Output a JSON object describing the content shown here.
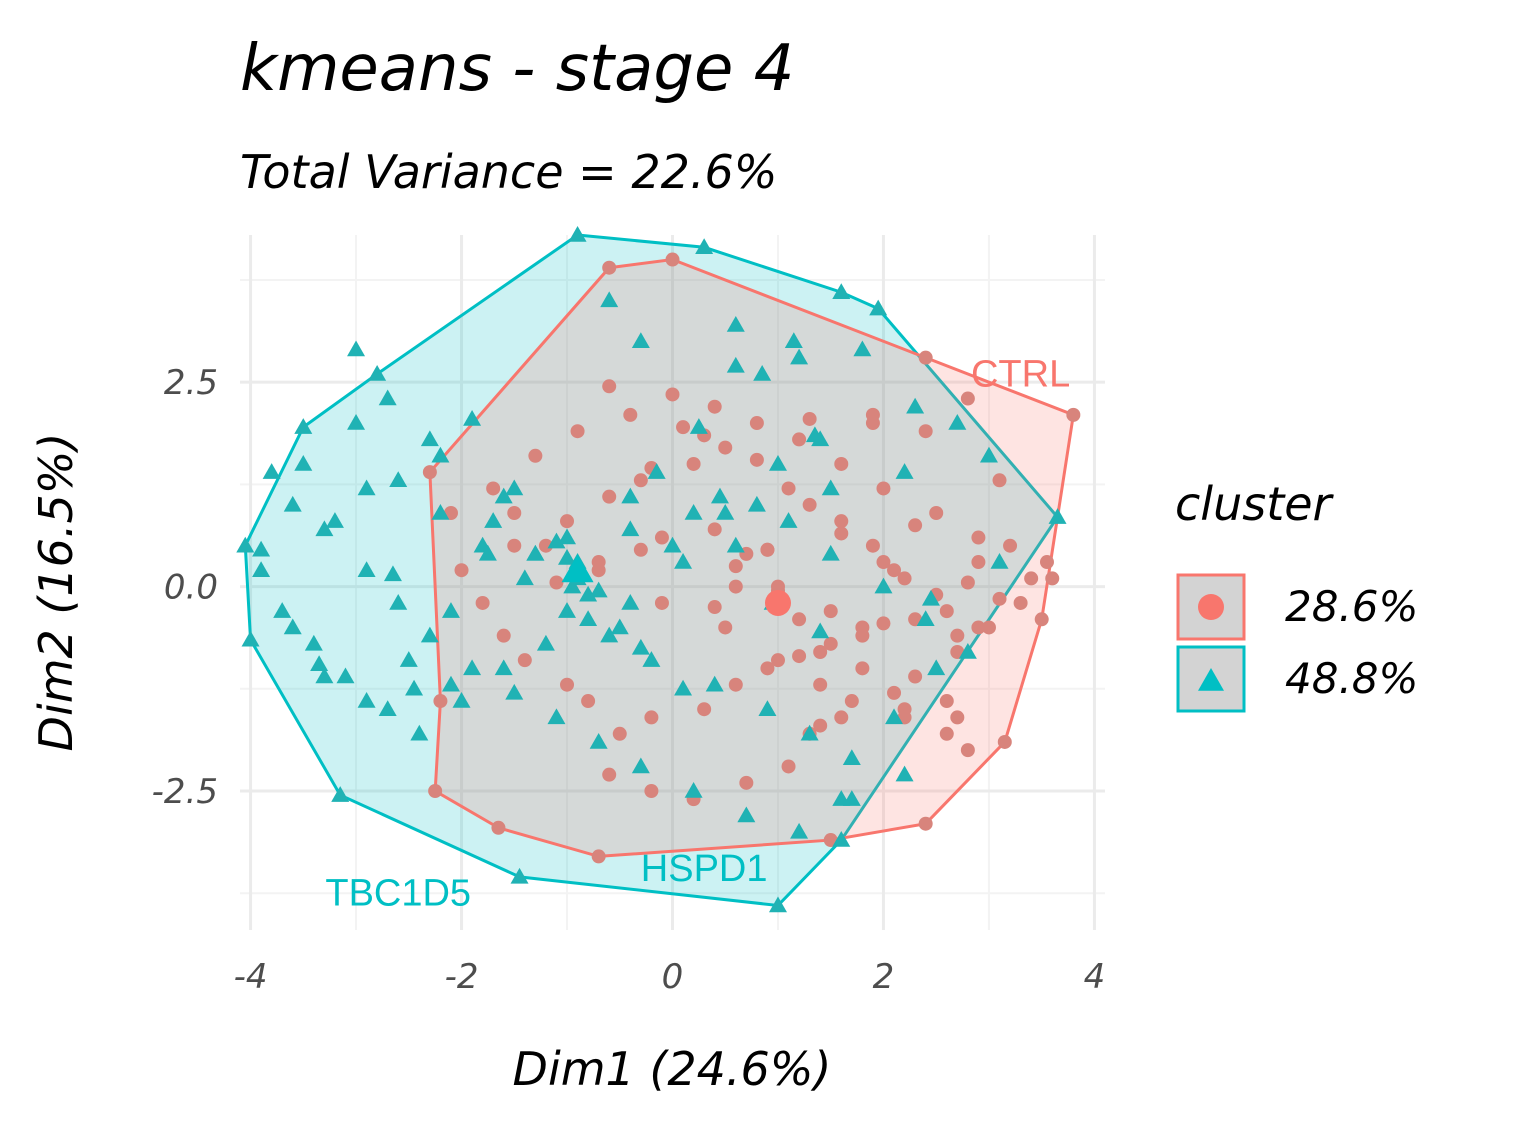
{
  "chart_data": {
    "type": "scatter",
    "title": "kmeans - stage 4",
    "subtitle": "Total Variance = 22.6%",
    "xlabel": "Dim1 (24.6%)",
    "ylabel": "Dim2 (16.5%)",
    "xlim": [
      -4.1,
      4.1
    ],
    "ylim": [
      -4.2,
      4.3
    ],
    "xticks": [
      -4,
      -2,
      0,
      2,
      4
    ],
    "xtick_labels": [
      "-4",
      "-2",
      "0",
      "2",
      "4"
    ],
    "yticks": [
      -2.5,
      0.0,
      2.5
    ],
    "ytick_labels": [
      "-2.5",
      "0.0",
      "2.5"
    ],
    "grid": true,
    "legend": {
      "title": "cluster",
      "position": "right",
      "entries": [
        {
          "label": "28.6%",
          "color": "#F8766D",
          "marker": "circle"
        },
        {
          "label": "48.8%",
          "color": "#00BFC4",
          "marker": "triangle"
        }
      ]
    },
    "annotations": [
      {
        "text": "CTRL",
        "x": 3.3,
        "y": 2.45,
        "color": "#F8766D"
      },
      {
        "text": "TBC1D5",
        "x": -2.6,
        "y": -3.9,
        "color": "#00BFC4"
      },
      {
        "text": "HSPD1",
        "x": 0.3,
        "y": -3.6,
        "color": "#00BFC4"
      }
    ],
    "series": [
      {
        "name": "28.6%",
        "color": "#F8766D",
        "marker": "circle",
        "centroid": [
          1.0,
          -0.2
        ],
        "hull": [
          [
            -0.6,
            3.9
          ],
          [
            0.0,
            4.0
          ],
          [
            2.4,
            2.8
          ],
          [
            3.8,
            2.1
          ],
          [
            3.5,
            -0.4
          ],
          [
            3.15,
            -1.9
          ],
          [
            2.4,
            -2.9
          ],
          [
            1.5,
            -3.1
          ],
          [
            -0.7,
            -3.3
          ],
          [
            -1.65,
            -2.95
          ],
          [
            -2.25,
            -2.5
          ],
          [
            -2.2,
            -1.4
          ],
          [
            -2.3,
            1.4
          ]
        ],
        "x": [
          -0.6,
          0.0,
          2.4,
          3.8,
          3.5,
          3.15,
          2.4,
          1.5,
          -0.7,
          -1.65,
          -2.25,
          -2.2,
          -2.3,
          -0.6,
          2.8,
          3.1,
          3.2,
          2.9,
          3.4,
          2.9,
          2.7,
          2.6,
          2.2,
          1.6,
          1.3,
          1.4,
          0.1,
          0.3,
          0.5,
          0.8,
          1.1,
          1.3,
          1.6,
          1.9,
          2.0,
          2.2,
          2.5,
          2.6,
          2.3,
          1.8,
          1.4,
          0.9,
          0.6,
          0.3,
          -0.2,
          -0.5,
          -0.8,
          -1.0,
          -1.4,
          -1.6,
          -1.8,
          -2.0,
          -1.5,
          -1.0,
          -0.6,
          -0.3,
          0.2,
          0.4,
          0.7,
          1.0,
          1.2,
          1.5,
          1.8,
          2.1,
          2.3,
          2.7,
          3.0,
          3.3,
          3.6,
          3.55,
          2.9,
          2.5,
          2.0,
          1.6,
          1.2,
          0.8,
          0.4,
          0.0,
          -0.4,
          -0.9,
          -1.3,
          -1.7,
          -2.1,
          -1.2,
          -0.7,
          -0.1,
          0.5,
          1.0,
          1.4,
          1.7,
          2.2,
          2.6,
          2.8,
          1.1,
          0.7,
          0.2,
          -0.2,
          -0.6,
          1.9,
          2.4,
          1.3,
          0.9,
          0.6,
          -0.3,
          1.5,
          2.0,
          2.7,
          3.1,
          -0.1,
          0.6,
          1.8,
          2.1,
          1.0,
          0.4,
          -0.7,
          -1.1,
          2.3,
          2.8,
          1.6,
          1.9,
          -1.5,
          -0.2,
          0.9,
          1.2
        ],
        "y": [
          3.9,
          4.0,
          2.8,
          2.1,
          -0.4,
          -1.9,
          -2.9,
          -3.1,
          -3.3,
          -2.95,
          -2.5,
          -1.4,
          1.4,
          2.45,
          2.3,
          1.3,
          0.5,
          0.3,
          0.1,
          -0.5,
          -1.6,
          -1.4,
          -1.5,
          -1.6,
          -1.8,
          -1.7,
          1.95,
          1.85,
          1.7,
          1.55,
          1.2,
          1.0,
          0.8,
          0.5,
          0.3,
          0.1,
          -0.1,
          -0.3,
          -0.4,
          -0.6,
          -0.8,
          -1.0,
          -1.2,
          -1.5,
          -1.6,
          -1.8,
          -1.4,
          -1.2,
          -0.9,
          -0.6,
          -0.2,
          0.2,
          0.5,
          0.8,
          1.1,
          1.3,
          1.5,
          0.7,
          0.4,
          0.0,
          -0.4,
          -0.7,
          -1.0,
          -1.3,
          -1.1,
          -0.8,
          -0.5,
          -0.2,
          0.1,
          0.3,
          0.6,
          0.9,
          1.2,
          1.5,
          1.8,
          2.0,
          2.2,
          2.35,
          2.1,
          1.9,
          1.6,
          1.2,
          0.9,
          0.5,
          0.2,
          -0.2,
          -0.5,
          -0.9,
          -1.2,
          -1.4,
          -1.6,
          -1.8,
          -2.0,
          -2.2,
          -2.4,
          -2.6,
          -2.5,
          -2.3,
          2.1,
          1.9,
          2.05,
          0.45,
          0.25,
          0.45,
          -0.3,
          -0.45,
          -0.6,
          -0.15,
          0.6,
          0.0,
          -0.5,
          0.2,
          -0.05,
          -0.25,
          0.3,
          0.05,
          0.75,
          0.05,
          0.65,
          2.0,
          0.9,
          1.45,
          0.45,
          -0.85
        ]
      },
      {
        "name": "48.8%",
        "color": "#00BFC4",
        "marker": "triangle",
        "centroid": [
          -0.9,
          0.2
        ],
        "hull": [
          [
            -0.9,
            4.3
          ],
          [
            0.3,
            4.15
          ],
          [
            1.6,
            3.6
          ],
          [
            1.95,
            3.4
          ],
          [
            3.65,
            0.85
          ],
          [
            1.6,
            -3.1
          ],
          [
            1.0,
            -3.9
          ],
          [
            -1.45,
            -3.55
          ],
          [
            -3.15,
            -2.55
          ],
          [
            -4.0,
            -0.65
          ],
          [
            -4.05,
            0.5
          ],
          [
            -3.5,
            1.95
          ],
          [
            -2.8,
            2.6
          ]
        ],
        "x": [
          -0.9,
          0.3,
          1.6,
          1.95,
          3.65,
          1.6,
          1.0,
          -1.45,
          -3.15,
          -4.0,
          -4.05,
          -3.5,
          -2.8,
          -0.6,
          -0.3,
          0.6,
          1.2,
          1.8,
          2.3,
          2.7,
          3.0,
          3.1,
          2.2,
          1.5,
          0.8,
          0.2,
          -0.4,
          -1.0,
          -1.6,
          -2.2,
          -2.9,
          -3.3,
          -3.6,
          -3.9,
          -3.7,
          -3.4,
          -3.1,
          -2.7,
          -2.4,
          -2.0,
          -1.6,
          -1.2,
          -0.8,
          -0.4,
          0.1,
          0.6,
          1.1,
          1.5,
          2.0,
          2.4,
          2.8,
          -3.0,
          -2.6,
          -2.2,
          -1.8,
          -1.4,
          -1.0,
          -0.6,
          -0.2,
          0.4,
          0.9,
          1.3,
          1.7,
          2.1,
          2.5,
          -3.8,
          -3.5,
          -3.2,
          -2.9,
          -2.6,
          -2.3,
          -1.9,
          -1.5,
          -1.1,
          -0.7,
          -0.3,
          0.2,
          0.7,
          1.2,
          1.6,
          -3.6,
          -3.3,
          -2.9,
          -2.5,
          -2.1,
          -1.7,
          -1.3,
          -0.9,
          -0.5,
          0.0,
          0.5,
          1.0,
          1.4,
          -3.0,
          -2.7,
          -2.3,
          -1.9,
          -1.5,
          -1.1,
          -0.7,
          -0.3,
          0.1,
          0.6,
          -0.9,
          -0.85,
          -0.95,
          -1.0,
          -0.8,
          1.15,
          0.85,
          1.35,
          2.45,
          -2.1,
          -1.3,
          0.45,
          -0.15,
          -3.9,
          -2.65,
          -1.75,
          0.95,
          -2.45,
          1.7,
          2.2,
          1.4,
          -3.35,
          -0.4,
          0.25
        ],
        "y": [
          4.3,
          4.15,
          3.6,
          3.4,
          0.85,
          -3.1,
          -3.9,
          -3.55,
          -2.55,
          -0.65,
          0.5,
          1.95,
          2.6,
          3.5,
          3.0,
          3.2,
          2.8,
          2.9,
          2.2,
          2.0,
          1.6,
          0.3,
          1.4,
          1.2,
          1.0,
          0.9,
          0.7,
          0.6,
          1.1,
          1.6,
          1.2,
          0.7,
          1.0,
          0.2,
          -0.3,
          -0.7,
          -1.1,
          -1.5,
          -1.8,
          -1.4,
          -1.0,
          -0.7,
          -0.4,
          -0.2,
          0.3,
          0.5,
          0.8,
          0.4,
          0.0,
          -0.4,
          -0.8,
          2.0,
          1.3,
          0.9,
          0.5,
          0.1,
          -0.3,
          -0.6,
          -0.9,
          -1.2,
          -1.5,
          -1.8,
          -2.1,
          -1.6,
          -1.0,
          1.4,
          1.5,
          0.8,
          0.2,
          -0.2,
          -0.6,
          -1.0,
          -1.3,
          -1.6,
          -1.9,
          -2.2,
          -2.5,
          -2.8,
          -3.0,
          -2.6,
          -0.5,
          -1.1,
          -1.4,
          -0.9,
          -1.2,
          0.8,
          0.4,
          0.1,
          -0.5,
          0.5,
          0.9,
          1.5,
          1.8,
          2.9,
          2.3,
          1.8,
          2.05,
          1.2,
          0.55,
          -0.05,
          -0.75,
          -1.25,
          2.7,
          0.3,
          0.15,
          0.0,
          0.35,
          -0.1,
          3.0,
          2.6,
          1.85,
          -0.15,
          -0.3,
          0.4,
          1.1,
          1.4,
          0.45,
          0.15,
          0.4,
          -0.2,
          -1.25,
          -2.6,
          -2.3,
          -0.55,
          -0.95,
          1.1,
          1.95
        ]
      }
    ]
  }
}
